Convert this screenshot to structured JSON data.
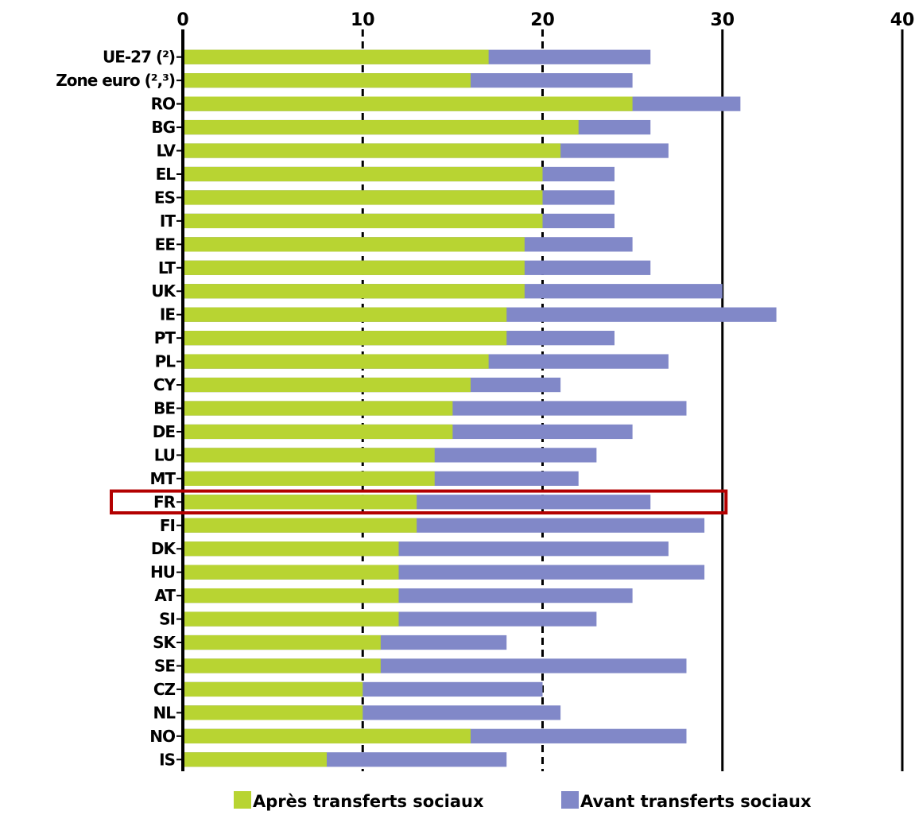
{
  "chart_data": {
    "type": "bar",
    "orientation": "horizontal",
    "stacked": false,
    "overlapping": true,
    "categories": [
      "UE-27 (²)",
      "Zone euro (²,³)",
      "RO",
      "BG",
      "LV",
      "EL",
      "ES",
      "IT",
      "EE",
      "LT",
      "UK",
      "IE",
      "PT",
      "PL",
      "CY",
      "BE",
      "DE",
      "LU",
      "MT",
      "FR",
      "FI",
      "DK",
      "HU",
      "AT",
      "SI",
      "SK",
      "SE",
      "CZ",
      "NL",
      "NO",
      "IS"
    ],
    "series": [
      {
        "name": "Avant transferts sociaux",
        "color": "#8188c8",
        "values": [
          26,
          25,
          31,
          26,
          27,
          24,
          24,
          24,
          25,
          26,
          30,
          33,
          24,
          27,
          21,
          28,
          25,
          23,
          22,
          26,
          29,
          27,
          29,
          25,
          23,
          18,
          28,
          20,
          21,
          28,
          18
        ]
      },
      {
        "name": "Après transferts sociaux",
        "color": "#b8d432",
        "values": [
          17,
          16,
          25,
          22,
          21,
          20,
          20,
          20,
          19,
          19,
          19,
          18,
          18,
          17,
          16,
          15,
          15,
          14,
          14,
          13,
          13,
          12,
          12,
          12,
          12,
          11,
          11,
          10,
          10,
          16,
          8
        ]
      }
    ],
    "xlim": [
      0,
      40
    ],
    "xticks": [
      "0",
      "10",
      "20",
      "30",
      "40"
    ],
    "xaxis_position": "top",
    "grid": "vertical dashed lines at 10 and 20, solid at 30 and 40",
    "legend_position": "bottom",
    "highlighted_category": "FR",
    "highlight_color": "#b30000"
  }
}
